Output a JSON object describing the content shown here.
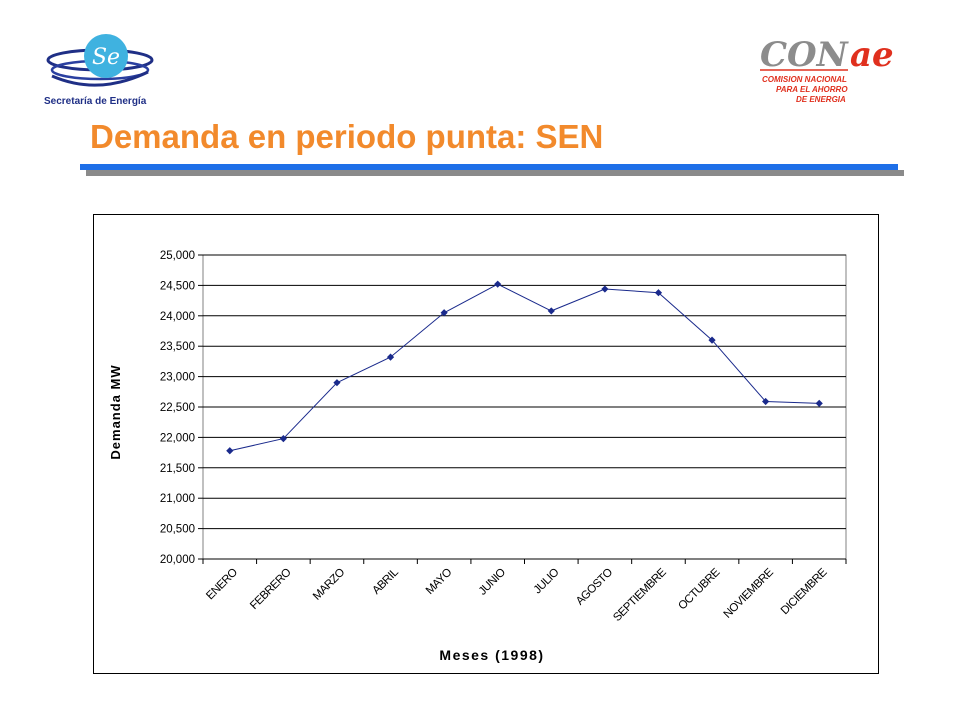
{
  "header": {
    "left_logo": {
      "caption": "Secretaría de Energía",
      "mark": "Se"
    },
    "right_logo": {
      "wordmark": "CONAe",
      "line1": "COMISION NACIONAL",
      "line2": "PARA EL AHORRO",
      "line3": "DE ENERGIA"
    }
  },
  "title": "Demanda en periodo punta: SEN",
  "colors": {
    "title": "#f28a2c",
    "rule": "#1e6fe8",
    "rule_shadow": "#8a8a8a",
    "series": "#1a2a8c",
    "conae_red": "#e0301e",
    "conae_gray": "#8c8c8c"
  },
  "chart_data": {
    "type": "line",
    "xlabel": "Meses (1998)",
    "ylabel": "Demanda MW",
    "categories": [
      "ENERO",
      "FEBRERO",
      "MARZO",
      "ABRIL",
      "MAYO",
      "JUNIO",
      "JULIO",
      "AGOSTO",
      "SEPTIEMBRE",
      "OCTUBRE",
      "NOVIEMBRE",
      "DICIEMBRE"
    ],
    "series": [
      {
        "values": [
          21780,
          21980,
          22900,
          23320,
          24050,
          24520,
          24080,
          24440,
          24380,
          23600,
          22590,
          22560
        ]
      }
    ],
    "ylim": [
      20000,
      25000
    ],
    "yticks": [
      20000,
      20500,
      21000,
      21500,
      22000,
      22500,
      23000,
      23500,
      24000,
      24500,
      25000
    ],
    "ytick_labels": [
      "20,000",
      "20,500",
      "21,000",
      "21,500",
      "22,000",
      "22,500",
      "23,000",
      "23,500",
      "24,000",
      "24,500",
      "25,000"
    ],
    "grid": true,
    "legend": false,
    "marker": "diamond"
  }
}
